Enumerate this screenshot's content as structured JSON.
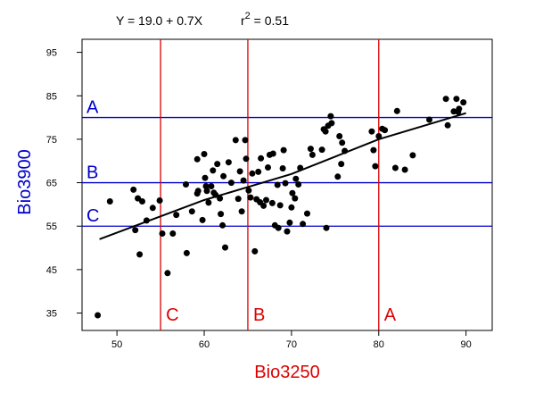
{
  "chart_data": {
    "type": "scatter",
    "title": "",
    "equation": "Y = 19.0 + 0.7X",
    "r2_label": "r",
    "r2_exponent": "2",
    "r2_value": " = 0.51",
    "xlabel": "Bio3250",
    "ylabel": "Bio3900",
    "xlim": [
      46,
      93
    ],
    "ylim": [
      31,
      98
    ],
    "x_ticks": [
      50,
      60,
      70,
      80,
      90
    ],
    "y_ticks": [
      35,
      45,
      55,
      65,
      75,
      85,
      95
    ],
    "grid": false,
    "colors": {
      "points": "#000000",
      "fit_line": "#000000",
      "horizontal_lines": "#0000cc",
      "vertical_lines": "#dd0000",
      "xlabel": "#dd0000",
      "ylabel": "#0000cc"
    },
    "horizontal_lines": [
      {
        "label": "A",
        "y": 80
      },
      {
        "label": "B",
        "y": 65
      },
      {
        "label": "C",
        "y": 55
      }
    ],
    "vertical_lines": [
      {
        "label": "C",
        "x": 55
      },
      {
        "label": "B",
        "x": 65
      },
      {
        "label": "A",
        "x": 80
      }
    ],
    "fit_line": [
      [
        48,
        52
      ],
      [
        52,
        55
      ],
      [
        56,
        58
      ],
      [
        60,
        61
      ],
      [
        65,
        64
      ],
      [
        70,
        67
      ],
      [
        75,
        71
      ],
      [
        80,
        75
      ],
      [
        85,
        78
      ],
      [
        90,
        81
      ]
    ],
    "points": [
      [
        47.8,
        34.5
      ],
      [
        49.2,
        60.7
      ],
      [
        51.9,
        63.4
      ],
      [
        52.1,
        54.1
      ],
      [
        52.4,
        61.4
      ],
      [
        52.6,
        48.5
      ],
      [
        52.9,
        60.7
      ],
      [
        53.4,
        56.3
      ],
      [
        54.1,
        59.2
      ],
      [
        54.9,
        60.9
      ],
      [
        55.2,
        53.3
      ],
      [
        55.8,
        44.2
      ],
      [
        56.4,
        53.3
      ],
      [
        56.8,
        57.6
      ],
      [
        57.9,
        64.6
      ],
      [
        58.0,
        48.8
      ],
      [
        58.6,
        58.4
      ],
      [
        59.2,
        62.5
      ],
      [
        59.2,
        70.4
      ],
      [
        59.3,
        63.1
      ],
      [
        59.8,
        56.4
      ],
      [
        60.0,
        71.6
      ],
      [
        60.1,
        66.1
      ],
      [
        60.2,
        64.2
      ],
      [
        60.3,
        63.1
      ],
      [
        60.5,
        60.4
      ],
      [
        60.8,
        64.2
      ],
      [
        61.0,
        67.8
      ],
      [
        61.1,
        62.7
      ],
      [
        61.3,
        62.2
      ],
      [
        61.5,
        69.3
      ],
      [
        61.8,
        61.4
      ],
      [
        61.9,
        57.8
      ],
      [
        62.1,
        55.2
      ],
      [
        62.2,
        66.5
      ],
      [
        62.4,
        50.1
      ],
      [
        62.8,
        69.7
      ],
      [
        63.1,
        65.0
      ],
      [
        63.6,
        74.8
      ],
      [
        63.9,
        61.3
      ],
      [
        64.1,
        67.6
      ],
      [
        64.3,
        58.4
      ],
      [
        64.5,
        65.5
      ],
      [
        64.7,
        74.8
      ],
      [
        64.8,
        70.5
      ],
      [
        65.1,
        63.2
      ],
      [
        65.3,
        61.6
      ],
      [
        65.5,
        67.1
      ],
      [
        65.8,
        49.2
      ],
      [
        66.0,
        61.2
      ],
      [
        66.2,
        67.5
      ],
      [
        66.4,
        60.5
      ],
      [
        66.5,
        70.6
      ],
      [
        66.8,
        59.7
      ],
      [
        67.1,
        61.0
      ],
      [
        67.3,
        68.5
      ],
      [
        67.5,
        71.4
      ],
      [
        67.8,
        60.3
      ],
      [
        67.9,
        71.7
      ],
      [
        68.1,
        55.2
      ],
      [
        68.4,
        64.5
      ],
      [
        68.5,
        54.6
      ],
      [
        68.7,
        59.8
      ],
      [
        69.0,
        68.3
      ],
      [
        69.1,
        72.5
      ],
      [
        69.3,
        64.9
      ],
      [
        69.5,
        53.8
      ],
      [
        69.8,
        55.8
      ],
      [
        70.0,
        59.3
      ],
      [
        70.1,
        62.6
      ],
      [
        70.4,
        61.4
      ],
      [
        70.5,
        65.9
      ],
      [
        70.8,
        64.6
      ],
      [
        71.0,
        68.4
      ],
      [
        71.3,
        55.5
      ],
      [
        71.8,
        57.9
      ],
      [
        72.2,
        72.8
      ],
      [
        72.4,
        71.4
      ],
      [
        73.5,
        72.6
      ],
      [
        73.7,
        77.3
      ],
      [
        73.9,
        76.8
      ],
      [
        74.0,
        54.6
      ],
      [
        74.2,
        78.1
      ],
      [
        74.5,
        80.3
      ],
      [
        74.6,
        78.7
      ],
      [
        75.3,
        66.4
      ],
      [
        75.5,
        75.7
      ],
      [
        75.7,
        69.3
      ],
      [
        75.8,
        74.2
      ],
      [
        76.1,
        72.3
      ],
      [
        79.2,
        76.8
      ],
      [
        79.4,
        72.5
      ],
      [
        79.6,
        68.8
      ],
      [
        80.0,
        75.7
      ],
      [
        80.4,
        77.4
      ],
      [
        80.7,
        77.1
      ],
      [
        81.9,
        68.4
      ],
      [
        82.1,
        81.5
      ],
      [
        83.0,
        68.0
      ],
      [
        83.9,
        71.3
      ],
      [
        85.8,
        79.5
      ],
      [
        87.7,
        84.3
      ],
      [
        87.9,
        78.2
      ],
      [
        88.6,
        81.4
      ],
      [
        88.9,
        84.3
      ],
      [
        89.1,
        81.3
      ],
      [
        89.2,
        82.0
      ],
      [
        89.7,
        83.5
      ]
    ]
  }
}
